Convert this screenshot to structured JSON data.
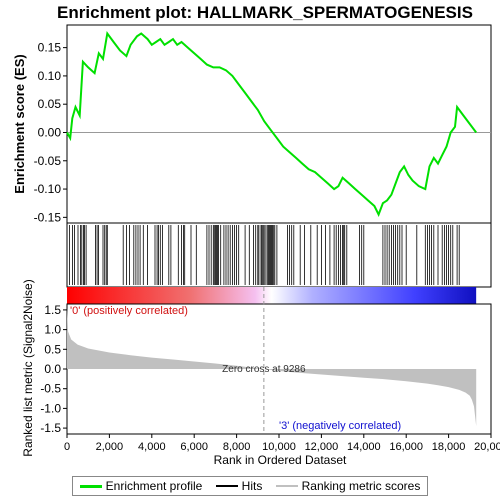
{
  "chart_data": {
    "type": "line",
    "title": "Enrichment plot: HALLMARK_SPERMATOGENESIS",
    "top_panel": {
      "ylabel": "Enrichment score (ES)",
      "ylim": [
        -0.16,
        0.19
      ],
      "yticks": [
        -0.15,
        -0.1,
        -0.05,
        0.0,
        0.05,
        0.1,
        0.15
      ],
      "ytick_labels": [
        "-0.15",
        "-0.10",
        "-0.05",
        "0.00",
        "0.05",
        "0.10",
        "0.15"
      ],
      "series": [
        {
          "name": "Enrichment profile",
          "color": "#00e000",
          "x": [
            0,
            150,
            250,
            400,
            600,
            750,
            1000,
            1300,
            1500,
            1700,
            1900,
            2200,
            2500,
            2800,
            3000,
            3300,
            3500,
            3800,
            4000,
            4200,
            4400,
            4600,
            4800,
            5000,
            5200,
            5400,
            5700,
            6000,
            6300,
            6600,
            6900,
            7200,
            7500,
            7800,
            8100,
            8400,
            8700,
            9000,
            9300,
            9600,
            9900,
            10200,
            10500,
            10800,
            11100,
            11400,
            11700,
            12000,
            12300,
            12600,
            12800,
            13000,
            13300,
            13600,
            13900,
            14200,
            14500,
            14700,
            14900,
            15100,
            15300,
            15500,
            15700,
            15900,
            16100,
            16300,
            16600,
            16900,
            17100,
            17300,
            17500,
            17700,
            17900,
            18100,
            18300,
            18400,
            18700,
            19000,
            19300
          ],
          "y": [
            0.0,
            -0.01,
            0.025,
            0.045,
            0.03,
            0.125,
            0.115,
            0.105,
            0.14,
            0.13,
            0.175,
            0.16,
            0.145,
            0.135,
            0.155,
            0.17,
            0.175,
            0.165,
            0.155,
            0.16,
            0.165,
            0.155,
            0.16,
            0.165,
            0.155,
            0.16,
            0.15,
            0.14,
            0.13,
            0.12,
            0.115,
            0.115,
            0.11,
            0.1,
            0.085,
            0.07,
            0.055,
            0.04,
            0.02,
            0.005,
            -0.01,
            -0.025,
            -0.035,
            -0.045,
            -0.055,
            -0.065,
            -0.07,
            -0.08,
            -0.09,
            -0.1,
            -0.095,
            -0.08,
            -0.09,
            -0.1,
            -0.11,
            -0.12,
            -0.13,
            -0.145,
            -0.125,
            -0.12,
            -0.11,
            -0.09,
            -0.07,
            -0.06,
            -0.075,
            -0.085,
            -0.095,
            -0.1,
            -0.06,
            -0.045,
            -0.055,
            -0.04,
            -0.025,
            0.0,
            0.01,
            0.045,
            0.03,
            0.015,
            0.0
          ]
        }
      ],
      "hits": [
        120,
        260,
        360,
        520,
        640,
        700,
        780,
        820,
        900,
        1350,
        1420,
        1480,
        1700,
        1780,
        1850,
        1900,
        2650,
        2800,
        2950,
        3150,
        3250,
        3350,
        3450,
        3600,
        3800,
        4150,
        4250,
        4320,
        4400,
        4500,
        4800,
        4900,
        5250,
        5400,
        5500,
        5550,
        5850,
        6100,
        6600,
        6700,
        6800,
        6900,
        6950,
        7000,
        7050,
        7100,
        7150,
        7250,
        7400,
        7500,
        7600,
        7700,
        7800,
        7900,
        8000,
        8100,
        8400,
        8600,
        8800,
        8900,
        9000,
        9050,
        9150,
        9200,
        9250,
        9300,
        9380,
        9450,
        9500,
        9550,
        9600,
        9650,
        9700,
        9750,
        9800,
        9900,
        10400,
        10500,
        10600,
        10700,
        11000,
        11200,
        11500,
        11800,
        12000,
        12200,
        12400,
        12600,
        12700,
        12800,
        12900,
        13000,
        13050,
        13100,
        13200,
        13800,
        13900,
        14000,
        14900,
        15000,
        15100,
        15200,
        15300,
        15400,
        15500,
        15600,
        15700,
        15800,
        16000,
        16500,
        16900,
        17000,
        17100,
        17200,
        17300,
        17500,
        17700,
        17800,
        17900,
        18000,
        18100,
        18200,
        18400,
        18500
      ],
      "zero_line": true
    },
    "bottom_panel": {
      "ylabel": "Ranked list metric (Signal2Noise)",
      "xlabel": "Rank in Ordered Dataset",
      "xlim": [
        0,
        20000
      ],
      "xticks": [
        0,
        2000,
        4000,
        6000,
        8000,
        10000,
        12000,
        14000,
        16000,
        18000,
        20000
      ],
      "xtick_labels": [
        "0",
        "2,000",
        "4,000",
        "6,000",
        "8,000",
        "10,000",
        "12,000",
        "14,000",
        "16,000",
        "18,000",
        "20,000"
      ],
      "ylim": [
        -1.65,
        1.65
      ],
      "yticks": [
        1.5,
        1.0,
        0.5,
        0.0,
        -0.5,
        -1.0,
        -1.5
      ],
      "ytick_labels": [
        "1.5",
        "1.0",
        "0.5",
        "0.0",
        "-0.5",
        "-1.0",
        "-1.5"
      ],
      "metric_x": [
        0,
        50,
        200,
        500,
        1000,
        2000,
        3000,
        4000,
        5000,
        6000,
        7000,
        8000,
        9286,
        10000,
        11000,
        12000,
        13000,
        14000,
        15000,
        16000,
        17000,
        17500,
        18000,
        18500,
        18800,
        19000,
        19100,
        19200,
        19300
      ],
      "metric_y": [
        1.55,
        0.95,
        0.75,
        0.62,
        0.52,
        0.42,
        0.35,
        0.29,
        0.24,
        0.19,
        0.14,
        0.08,
        0.0,
        -0.05,
        -0.1,
        -0.14,
        -0.18,
        -0.22,
        -0.26,
        -0.31,
        -0.37,
        -0.41,
        -0.46,
        -0.53,
        -0.6,
        -0.68,
        -0.78,
        -0.95,
        -1.45
      ],
      "zero_cross": 9286,
      "zero_cross_label": "Zero cross at 9286",
      "pos_label": "'0' (positively correlated)",
      "neg_label": "'3' (negatively correlated)",
      "pos_label_color": "#d01010",
      "neg_label_color": "#1010d0",
      "fill_color": "#c0c0c0"
    },
    "legend": {
      "placement": "bottom",
      "entries": [
        {
          "label": "Enrichment profile",
          "color": "#00e000"
        },
        {
          "label": "Hits",
          "color": "#000000"
        },
        {
          "label": "Ranking metric scores",
          "color": "#c0c0c0"
        }
      ]
    }
  }
}
